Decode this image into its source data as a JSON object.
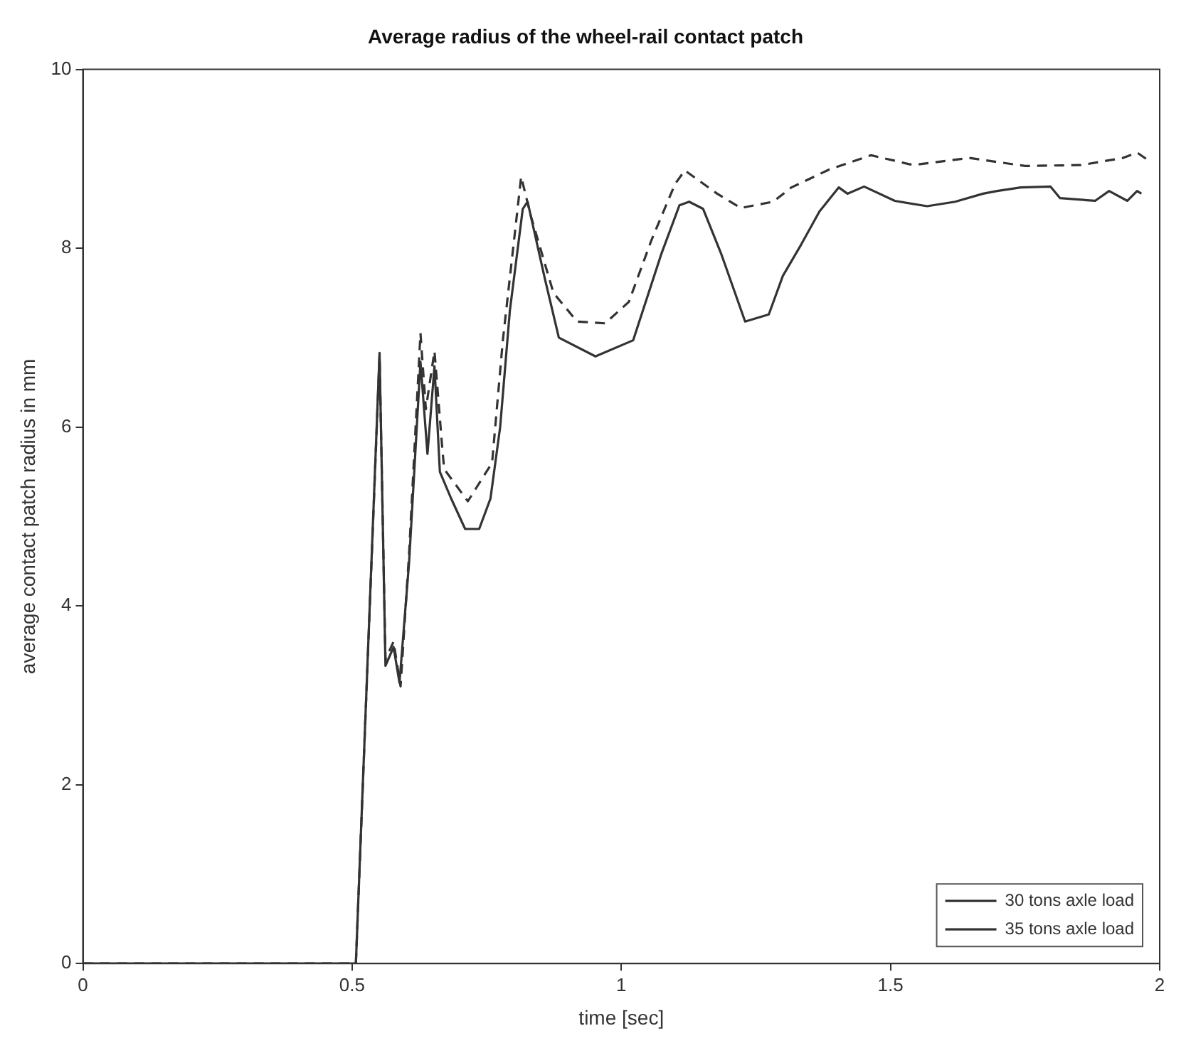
{
  "chart_data": {
    "type": "line",
    "title": "Average radius of the wheel-rail contact patch",
    "xlabel": "time [sec]",
    "ylabel": "average contact patch radius in mm",
    "xlim": [
      0,
      2
    ],
    "xticks": [
      0,
      0.5,
      1,
      1.5,
      2
    ],
    "ylim": [
      0,
      10
    ],
    "yticks": [
      0,
      2,
      4,
      6,
      8,
      10
    ],
    "grid": false,
    "legend": "bottom right",
    "marker": "none",
    "series": [
      {
        "name": "30 tons axle load",
        "color": "#333333",
        "line_style": "solid",
        "x": [
          0,
          0.507,
          0.551,
          0.562,
          0.577,
          0.588,
          0.606,
          0.627,
          0.64,
          0.653,
          0.663,
          0.684,
          0.71,
          0.736,
          0.757,
          0.775,
          0.793,
          0.817,
          0.826,
          0.858,
          0.884,
          0.952,
          1.022,
          1.074,
          1.108,
          1.126,
          1.152,
          1.186,
          1.23,
          1.274,
          1.3,
          1.334,
          1.368,
          1.404,
          1.42,
          1.451,
          1.508,
          1.568,
          1.62,
          1.672,
          1.698,
          1.742,
          1.797,
          1.815,
          1.88,
          1.906,
          1.94,
          1.958,
          1.966
        ],
        "values": [
          0,
          0,
          6.83,
          3.33,
          3.54,
          3.14,
          4.5,
          6.73,
          5.7,
          6.68,
          5.5,
          5.2,
          4.86,
          4.86,
          5.2,
          6.0,
          7.3,
          8.44,
          8.52,
          7.66,
          7.0,
          6.79,
          6.97,
          7.93,
          8.48,
          8.52,
          8.44,
          7.93,
          7.18,
          7.26,
          7.69,
          8.04,
          8.41,
          8.68,
          8.61,
          8.69,
          8.53,
          8.47,
          8.52,
          8.61,
          8.64,
          8.68,
          8.69,
          8.56,
          8.53,
          8.64,
          8.53,
          8.64,
          8.61
        ]
      },
      {
        "name": "35 tons axle load",
        "color": "#333333",
        "line_style": "dashed",
        "x": [
          0,
          0.507,
          0.551,
          0.562,
          0.577,
          0.59,
          0.606,
          0.627,
          0.637,
          0.653,
          0.667,
          0.671,
          0.715,
          0.76,
          0.78,
          0.814,
          0.832,
          0.874,
          0.918,
          0.97,
          1.014,
          1.056,
          1.1,
          1.118,
          1.178,
          1.222,
          1.282,
          1.316,
          1.386,
          1.464,
          1.542,
          1.646,
          1.75,
          1.854,
          1.932,
          1.958,
          1.984
        ],
        "values": [
          0,
          0,
          6.8,
          3.4,
          3.6,
          3.1,
          4.6,
          7.05,
          6.2,
          6.85,
          5.8,
          5.53,
          5.17,
          5.6,
          6.97,
          8.8,
          8.36,
          7.5,
          7.18,
          7.16,
          7.4,
          8.09,
          8.72,
          8.87,
          8.61,
          8.45,
          8.52,
          8.68,
          8.88,
          9.04,
          8.93,
          9.01,
          8.92,
          8.93,
          9.01,
          9.07,
          8.96
        ]
      }
    ]
  }
}
